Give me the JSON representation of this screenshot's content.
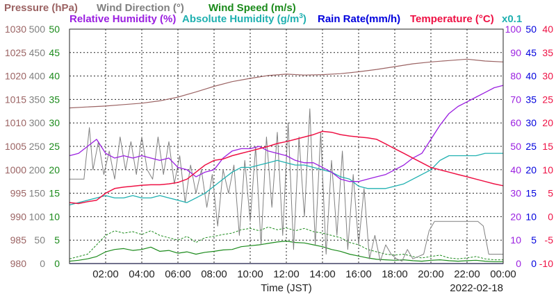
{
  "header": {
    "pressure": "Pressure (hPa)",
    "wind_dir": "Wind Direction (°)",
    "wind_speed": "Wind Speed (m/s)",
    "rel_hum": "Relative Humidity (%)",
    "abs_hum": "Absolute Humidity (g/m",
    "abs_hum_sup": "3",
    "abs_hum_close": ")",
    "rain": "Rain Rate(mm/h)",
    "temp": "Temperature (°C)",
    "scale_note": "x0.1"
  },
  "colors": {
    "pressure": "#9b6363",
    "wind_dir": "#808080",
    "wind_speed": "#1a8a1a",
    "rel_hum": "#9a1fe0",
    "abs_hum": "#1fb0b0",
    "rain": "#0000dd",
    "temp": "#ee1144",
    "grid": "#222222"
  },
  "footer": {
    "xlabel": "Time (JST)",
    "date": "2022-02-18"
  },
  "chart_data": {
    "type": "line",
    "x_unit": "hours (JST)",
    "xlim": [
      0,
      24
    ],
    "x_ticks": [
      {
        "h": 2,
        "label": "02:00"
      },
      {
        "h": 4,
        "label": "04:00"
      },
      {
        "h": 6,
        "label": "06:00"
      },
      {
        "h": 8,
        "label": "08:00"
      },
      {
        "h": 10,
        "label": "10:00"
      },
      {
        "h": 12,
        "label": "12:00"
      },
      {
        "h": 14,
        "label": "14:00"
      },
      {
        "h": 16,
        "label": "16:00"
      },
      {
        "h": 18,
        "label": "18:00"
      },
      {
        "h": 20,
        "label": "20:00"
      },
      {
        "h": 22,
        "label": "22:00"
      },
      {
        "h": 24,
        "label": "00:00"
      }
    ],
    "grid": true,
    "axes": [
      {
        "key": "pressure",
        "side": "left",
        "ylim": [
          980,
          1030
        ],
        "ticks": [
          "980",
          "985",
          "990",
          "995",
          "1000",
          "1005",
          "1010",
          "1015",
          "1020",
          "1025",
          "1030"
        ]
      },
      {
        "key": "wind_dir",
        "side": "left",
        "ylim": [
          0,
          500
        ],
        "ticks": [
          "0",
          "50",
          "100",
          "150",
          "200",
          "250",
          "300",
          "350",
          "400",
          "450",
          "500"
        ]
      },
      {
        "key": "wind_speed",
        "side": "left",
        "ylim": [
          0,
          50
        ],
        "ticks": [
          "0",
          "5",
          "10",
          "15",
          "20",
          "25",
          "30",
          "35",
          "40",
          "45",
          "50"
        ]
      },
      {
        "key": "rel_hum",
        "side": "right",
        "ylim": [
          0,
          100
        ],
        "ticks": [
          "0",
          "10",
          "20",
          "30",
          "40",
          "50",
          "60",
          "70",
          "80",
          "90",
          "100"
        ]
      },
      {
        "key": "rain",
        "side": "right",
        "ylim": [
          0,
          50
        ],
        "ticks": [
          "0",
          "5",
          "10",
          "15",
          "20",
          "25",
          "30",
          "35",
          "40",
          "45",
          "50"
        ]
      },
      {
        "key": "temp",
        "side": "right",
        "ylim": [
          -10,
          40
        ],
        "ticks": [
          "-10",
          "-5",
          "0",
          "5",
          "10",
          "15",
          "20",
          "25",
          "30",
          "35",
          "40"
        ]
      }
    ],
    "series": [
      {
        "name": "Pressure (hPa)",
        "key": "pressure",
        "axis": "pressure",
        "x": [
          0,
          1,
          2,
          3,
          4,
          5,
          6,
          7,
          8,
          9,
          10,
          11,
          12,
          13,
          14,
          15,
          16,
          17,
          18,
          19,
          20,
          21,
          22,
          23,
          24
        ],
        "y": [
          1013.2,
          1013.4,
          1013.6,
          1013.9,
          1014.2,
          1014.7,
          1015.5,
          1016.6,
          1017.8,
          1018.8,
          1019.5,
          1020.1,
          1020.4,
          1020.2,
          1020.3,
          1020.5,
          1020.9,
          1021.4,
          1022.0,
          1022.6,
          1023.0,
          1023.3,
          1023.6,
          1023.2,
          1023.0
        ]
      },
      {
        "name": "Wind Direction (°)",
        "key": "wind_dir",
        "axis": "wind_dir",
        "x": [
          0,
          0.8,
          1.1,
          1.3,
          1.6,
          1.9,
          2.2,
          2.5,
          2.8,
          3.1,
          3.4,
          3.7,
          4.0,
          4.3,
          4.6,
          4.9,
          5.2,
          5.5,
          5.8,
          6.1,
          6.4,
          6.7,
          7.0,
          7.3,
          7.6,
          7.9,
          8.2,
          8.5,
          8.8,
          9.1,
          9.4,
          9.7,
          10.0,
          10.3,
          10.6,
          10.9,
          11.2,
          11.5,
          11.8,
          12.1,
          12.4,
          12.7,
          13.0,
          13.3,
          13.6,
          13.9,
          14.2,
          14.5,
          14.8,
          15.1,
          15.4,
          15.7,
          16.0,
          16.3,
          16.6,
          16.9,
          17.2,
          17.5,
          17.8,
          18.1,
          18.4,
          18.7,
          19.0,
          19.3,
          19.6,
          19.9,
          20.2,
          20.5,
          20.8,
          21.1,
          21.4,
          21.7,
          22.0,
          22.3,
          22.6,
          22.9,
          23.2,
          23.5,
          24.0
        ],
        "y": [
          180,
          180,
          290,
          200,
          260,
          190,
          240,
          180,
          270,
          200,
          260,
          190,
          270,
          200,
          180,
          270,
          190,
          260,
          170,
          230,
          130,
          210,
          150,
          200,
          120,
          190,
          80,
          200,
          150,
          210,
          60,
          220,
          90,
          250,
          40,
          270,
          120,
          280,
          60,
          300,
          30,
          270,
          100,
          330,
          40,
          280,
          20,
          220,
          60,
          240,
          30,
          190,
          40,
          160,
          10,
          60,
          5,
          40,
          20,
          10,
          5,
          30,
          10,
          15,
          20,
          70,
          90,
          90,
          90,
          90,
          90,
          90,
          90,
          90,
          90,
          80,
          20,
          20,
          20
        ]
      },
      {
        "name": "Wind Speed (m/s)",
        "key": "wind_speed",
        "axis": "wind_speed",
        "x": [
          0,
          0.5,
          1,
          1.5,
          2,
          2.5,
          3,
          3.5,
          4,
          4.5,
          5,
          5.5,
          6,
          6.5,
          7,
          7.5,
          8,
          8.5,
          9,
          9.5,
          10,
          10.5,
          11,
          11.5,
          12,
          12.5,
          13,
          13.5,
          14,
          14.5,
          15,
          15.5,
          16,
          16.5,
          17,
          17.5,
          18,
          18.5,
          19,
          19.5,
          20,
          20.5,
          21,
          21.5,
          22,
          22.5,
          23,
          23.5,
          24
        ],
        "y": [
          0.5,
          0.7,
          1.0,
          1.5,
          2.5,
          3.0,
          3.2,
          2.8,
          3.0,
          3.5,
          2.6,
          2.8,
          2.2,
          2.5,
          2.0,
          2.4,
          2.6,
          2.9,
          3.0,
          3.6,
          3.8,
          4.0,
          4.3,
          4.6,
          4.8,
          4.5,
          4.4,
          4.0,
          3.6,
          3.0,
          2.6,
          2.0,
          1.6,
          1.2,
          0.9,
          0.8,
          0.7,
          0.8,
          0.6,
          0.5,
          0.7,
          0.8,
          0.6,
          0.5,
          0.6,
          0.7,
          0.5,
          0.4,
          0.4
        ]
      },
      {
        "name": "Wind Speed gust (m/s)",
        "key": "wind_speed_gust",
        "axis": "wind_speed",
        "x": [
          0,
          0.5,
          1,
          1.5,
          2,
          2.5,
          3,
          3.5,
          4,
          4.5,
          5,
          5.5,
          6,
          6.5,
          7,
          7.5,
          8,
          8.5,
          9,
          9.5,
          10,
          10.5,
          11,
          11.5,
          12,
          12.5,
          13,
          13.5,
          14,
          14.5,
          15,
          15.5,
          16,
          16.5,
          17,
          17.5,
          18,
          18.5,
          19,
          19.5,
          20,
          20.5,
          21,
          21.5,
          22,
          22.5,
          23,
          23.5,
          24
        ],
        "y": [
          1.0,
          1.5,
          2.0,
          4.0,
          6.0,
          7.0,
          6.5,
          6.8,
          6.2,
          7.0,
          6.0,
          5.5,
          5.0,
          5.8,
          4.5,
          5.5,
          5.8,
          6.2,
          6.5,
          7.2,
          7.5,
          7.0,
          7.8,
          7.2,
          7.6,
          7.0,
          7.5,
          6.8,
          6.5,
          6.0,
          5.5,
          4.5,
          4.0,
          3.0,
          2.5,
          2.0,
          1.8,
          2.0,
          1.5,
          1.2,
          1.5,
          1.8,
          1.2,
          1.0,
          1.2,
          1.5,
          1.0,
          0.8,
          0.8
        ]
      },
      {
        "name": "Relative Humidity (%)",
        "key": "rel_hum",
        "axis": "rel_hum",
        "x": [
          0,
          0.5,
          1,
          1.5,
          2,
          2.5,
          3,
          3.5,
          4,
          4.5,
          5,
          5.5,
          6,
          6.5,
          7,
          7.5,
          8,
          8.5,
          9,
          9.5,
          10,
          10.5,
          11,
          11.5,
          12,
          12.5,
          13,
          13.5,
          14,
          14.5,
          15,
          15.5,
          16,
          16.5,
          17,
          17.5,
          18,
          18.5,
          19,
          19.5,
          20,
          20.5,
          21,
          21.5,
          22,
          22.5,
          23,
          23.5,
          24
        ],
        "y": [
          46,
          47,
          50,
          53,
          47,
          45,
          46,
          45,
          46,
          45,
          44,
          45,
          41,
          40,
          37,
          39,
          40,
          45,
          48,
          49,
          49,
          50,
          48,
          47,
          46,
          44,
          43,
          43,
          41,
          39,
          36,
          35,
          35,
          36,
          37,
          38,
          40,
          42,
          45,
          47,
          53,
          59,
          64,
          67,
          69,
          71,
          73,
          75,
          76
        ]
      },
      {
        "name": "Absolute Humidity (g/m3)",
        "key": "abs_hum",
        "axis": "rel_hum",
        "x": [
          0,
          0.5,
          1,
          1.5,
          2,
          2.5,
          3,
          3.5,
          4,
          4.5,
          5,
          5.5,
          6,
          6.5,
          7,
          7.5,
          8,
          8.5,
          9,
          9.5,
          10,
          10.5,
          11,
          11.5,
          12,
          12.5,
          13,
          13.5,
          14,
          14.5,
          15,
          15.5,
          16,
          16.5,
          17,
          17.5,
          18,
          18.5,
          19,
          19.5,
          20,
          20.5,
          21,
          21.5,
          22,
          22.5,
          23,
          23.5,
          24
        ],
        "y": [
          25,
          26,
          27,
          28,
          29,
          28,
          28,
          29,
          28,
          28,
          29,
          28,
          27,
          26,
          28,
          30,
          33,
          36,
          39,
          41,
          41,
          42,
          43,
          44,
          43,
          42,
          42,
          41,
          40,
          39,
          37,
          36,
          33,
          32,
          32,
          32,
          33,
          34,
          36,
          38,
          40,
          44,
          46,
          46,
          46,
          46,
          47,
          47,
          47
        ]
      },
      {
        "name": "Rain Rate(mm/h)",
        "key": "rain",
        "axis": "rain",
        "x": [
          0,
          24
        ],
        "y": [
          0,
          0
        ]
      },
      {
        "name": "Temperature (°C)",
        "key": "temp",
        "axis": "temp",
        "x": [
          0,
          0.5,
          1,
          1.5,
          2,
          2.5,
          3,
          3.5,
          4,
          4.5,
          5,
          5.5,
          6,
          6.5,
          7,
          7.5,
          8,
          8.5,
          9,
          9.5,
          10,
          10.5,
          11,
          11.5,
          12,
          12.5,
          13,
          13.5,
          14,
          14.5,
          15,
          15.5,
          16,
          16.5,
          17,
          17.5,
          18,
          18.5,
          19,
          19.5,
          20,
          20.5,
          21,
          21.5,
          22,
          22.5,
          23,
          23.5,
          24
        ],
        "y": [
          3.0,
          2.8,
          3.2,
          3.5,
          5.0,
          6.0,
          6.3,
          6.5,
          6.7,
          6.8,
          6.8,
          7.0,
          7.3,
          8.0,
          9.5,
          11.0,
          12.0,
          12.3,
          13.0,
          13.5,
          14.0,
          14.5,
          15.0,
          15.6,
          16.0,
          16.5,
          17.0,
          17.5,
          18.2,
          18.0,
          17.5,
          17.2,
          17.0,
          16.8,
          16.5,
          15.5,
          14.5,
          13.5,
          12.5,
          11.5,
          10.5,
          10.0,
          9.5,
          9.0,
          8.5,
          8.0,
          7.5,
          7.0,
          6.6
        ]
      }
    ]
  }
}
